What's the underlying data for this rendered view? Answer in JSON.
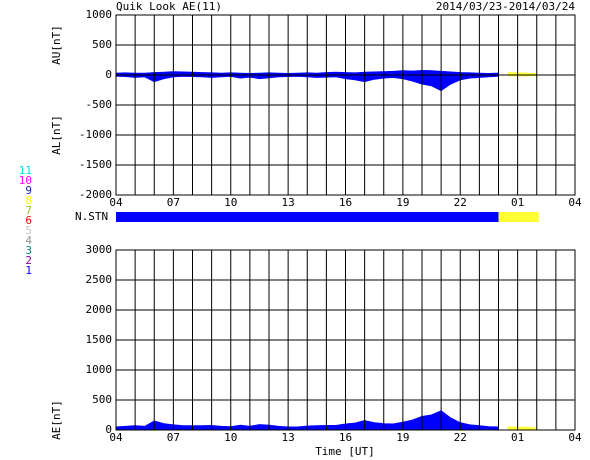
{
  "title": "Quik Look AE(11)",
  "date_range": "2014/03/23-2014/03/24",
  "x_label": "Time [UT]",
  "station_legend": {
    "labels": [
      "11",
      "10",
      "9",
      "8",
      "7",
      "6",
      "5",
      "4",
      "3",
      "2",
      "1"
    ],
    "colors": [
      "#00e0e0",
      "#ff00ff",
      "#2020c0",
      "#ffff00",
      "#90c030",
      "#ff0000",
      "#c8c8c8",
      "#909090",
      "#008888",
      "#8800aa",
      "#0000ff"
    ]
  },
  "chart_data": [
    {
      "type": "area",
      "ylabel": "AU[nT]",
      "ylabel2": "AL[nT]",
      "xlim": [
        0,
        24
      ],
      "ylim": [
        -2000,
        1000
      ],
      "yticks": [
        -2000,
        -1500,
        -1000,
        -500,
        0,
        500,
        1000
      ],
      "xticks": [
        {
          "value": 0,
          "label": "04"
        },
        {
          "value": 3,
          "label": "07"
        },
        {
          "value": 6,
          "label": "10"
        },
        {
          "value": 9,
          "label": "13"
        },
        {
          "value": 12,
          "label": "16"
        },
        {
          "value": 15,
          "label": "19"
        },
        {
          "value": 18,
          "label": "22"
        },
        {
          "value": 21,
          "label": "01"
        },
        {
          "value": 24,
          "label": "04"
        }
      ],
      "minor_xticks": [
        1,
        2,
        4,
        5,
        7,
        8,
        10,
        11,
        13,
        14,
        16,
        17,
        19,
        20,
        22,
        23
      ],
      "grid": true,
      "series": [
        {
          "color": "#0000ff",
          "x": [
            0,
            0.5,
            1,
            1.5,
            2,
            2.5,
            3,
            3.5,
            4,
            4.5,
            5,
            5.5,
            6,
            6.5,
            7,
            7.5,
            8,
            8.5,
            9,
            9.5,
            10,
            10.5,
            11,
            11.5,
            12,
            12.5,
            13,
            13.5,
            14,
            14.5,
            15,
            15.5,
            16,
            16.5,
            17,
            17.5,
            18,
            18.5,
            19,
            19.5,
            20
          ],
          "values": [
            30,
            35,
            30,
            30,
            40,
            45,
            55,
            50,
            45,
            40,
            35,
            30,
            35,
            30,
            25,
            30,
            35,
            30,
            25,
            30,
            35,
            30,
            40,
            45,
            40,
            35,
            45,
            50,
            55,
            60,
            70,
            65,
            75,
            70,
            60,
            50,
            40,
            35,
            30,
            25,
            30
          ]
        },
        {
          "color": "#0000ff",
          "x": [
            0,
            0.5,
            1,
            1.5,
            2,
            2.5,
            3,
            3.5,
            4,
            4.5,
            5,
            5.5,
            6,
            6.5,
            7,
            7.5,
            8,
            8.5,
            9,
            9.5,
            10,
            10.5,
            11,
            11.5,
            12,
            12.5,
            13,
            13.5,
            14,
            14.5,
            15,
            15.5,
            16,
            16.5,
            17,
            17.5,
            18,
            18.5,
            19,
            19.5,
            20
          ],
          "values": [
            -20,
            -25,
            -40,
            -30,
            -110,
            -60,
            -30,
            -20,
            -25,
            -30,
            -40,
            -30,
            -20,
            -50,
            -35,
            -60,
            -45,
            -30,
            -25,
            -20,
            -30,
            -40,
            -35,
            -30,
            -60,
            -80,
            -110,
            -70,
            -50,
            -40,
            -60,
            -100,
            -150,
            -180,
            -260,
            -150,
            -80,
            -50,
            -40,
            -30,
            -20
          ]
        },
        {
          "color": "#ffff33",
          "x": [
            20.5,
            21,
            21.5,
            22
          ],
          "values": [
            40,
            35,
            30,
            20
          ]
        },
        {
          "color": "#ffff33",
          "x": [
            20.5,
            21,
            21.5,
            22
          ],
          "values": [
            -15,
            -10,
            -15,
            -10
          ]
        }
      ]
    },
    {
      "type": "station_bar",
      "label": "N.STN",
      "xlim": [
        0,
        24
      ],
      "segments": [
        {
          "start": 0,
          "end": 20,
          "color": "#0000ff"
        },
        {
          "start": 20,
          "end": 22.1,
          "color": "#ffff33"
        }
      ]
    },
    {
      "type": "area",
      "ylabel": "AE[nT]",
      "xlim": [
        0,
        24
      ],
      "ylim": [
        0,
        3000
      ],
      "yticks": [
        0,
        500,
        1000,
        1500,
        2000,
        2500,
        3000
      ],
      "xticks": [
        {
          "value": 0,
          "label": "04"
        },
        {
          "value": 3,
          "label": "07"
        },
        {
          "value": 6,
          "label": "10"
        },
        {
          "value": 9,
          "label": "13"
        },
        {
          "value": 12,
          "label": "16"
        },
        {
          "value": 15,
          "label": "19"
        },
        {
          "value": 18,
          "label": "22"
        },
        {
          "value": 21,
          "label": "01"
        },
        {
          "value": 24,
          "label": "04"
        }
      ],
      "minor_xticks": [
        1,
        2,
        4,
        5,
        7,
        8,
        10,
        11,
        13,
        14,
        16,
        17,
        19,
        20,
        22,
        23
      ],
      "grid": true,
      "series": [
        {
          "color": "#0000ff",
          "x": [
            0,
            0.5,
            1,
            1.5,
            2,
            2.5,
            3,
            3.5,
            4,
            4.5,
            5,
            5.5,
            6,
            6.5,
            7,
            7.5,
            8,
            8.5,
            9,
            9.5,
            10,
            10.5,
            11,
            11.5,
            12,
            12.5,
            13,
            13.5,
            14,
            14.5,
            15,
            15.5,
            16,
            16.5,
            17,
            17.5,
            18,
            18.5,
            19,
            19.5,
            20
          ],
          "values": [
            50,
            60,
            70,
            60,
            150,
            105,
            85,
            70,
            70,
            70,
            75,
            60,
            55,
            80,
            60,
            90,
            80,
            60,
            50,
            50,
            65,
            70,
            75,
            75,
            100,
            115,
            155,
            120,
            105,
            100,
            130,
            165,
            225,
            250,
            320,
            200,
            120,
            85,
            70,
            55,
            50
          ]
        },
        {
          "color": "#ffff33",
          "x": [
            20.5,
            21,
            21.5,
            22
          ],
          "values": [
            55,
            45,
            45,
            30
          ]
        }
      ]
    }
  ]
}
